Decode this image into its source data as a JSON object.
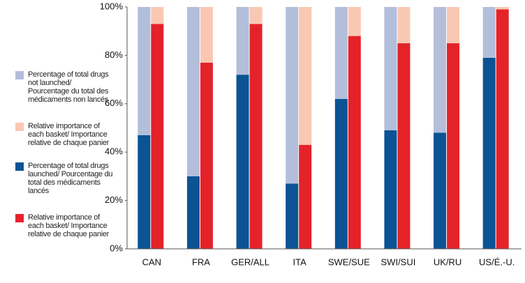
{
  "chart_data": {
    "type": "bar",
    "categories": [
      "CAN",
      "FRA",
      "GER/ALL",
      "ITA",
      "SWE/SUE",
      "SWI/SUI",
      "UK/RU",
      "US/É.-U."
    ],
    "series": [
      {
        "name": "Percentage of total drugs not launched/ Pourcentage du total des médicaments non lancés",
        "color": "#b3bedb",
        "values": [
          53,
          70,
          28,
          73,
          38,
          51,
          52,
          21
        ]
      },
      {
        "name": "Relative importance of each basket/ Importance relative de chaque panier",
        "color": "#f9c8b3",
        "values": [
          7,
          23,
          7,
          57,
          12,
          15,
          15,
          1
        ]
      },
      {
        "name": "Percentage of total drugs launched/ Pourcentage du total des médicaments lancés",
        "color": "#0b5394",
        "values": [
          47,
          30,
          72,
          27,
          62,
          49,
          48,
          79
        ]
      },
      {
        "name": "Relative importance of each basket/ Importance relative de chaque panier",
        "color": "#e52229",
        "values": [
          93,
          77,
          93,
          43,
          88,
          85,
          85,
          99
        ]
      }
    ],
    "ylim": [
      0,
      100
    ],
    "yticks": [
      {
        "value": 0,
        "label": "0%"
      },
      {
        "value": 20,
        "label": "20%"
      },
      {
        "value": 40,
        "label": "40%"
      },
      {
        "value": 60,
        "label": "60%"
      },
      {
        "value": 80,
        "label": "80%"
      },
      {
        "value": 100,
        "label": "100%"
      }
    ],
    "grid": false
  }
}
